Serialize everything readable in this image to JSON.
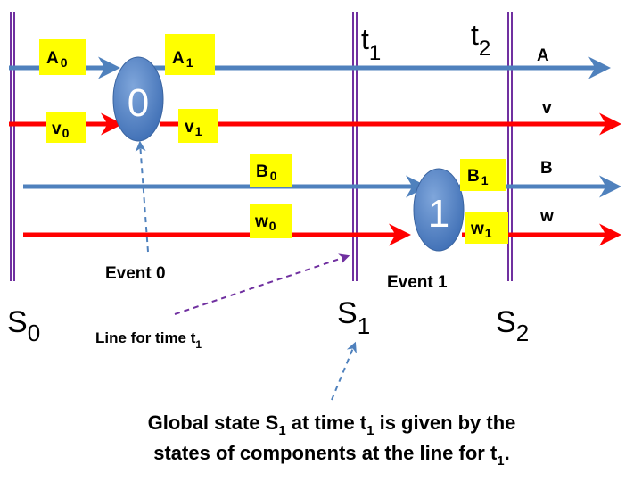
{
  "colors": {
    "blue_line": "#4f81bd",
    "red_line": "#ff0000",
    "purple_line": "#7030a0",
    "label_bg": "#ffff00",
    "event_fill": "#4f81bd",
    "arrow_dash": "#4f81bd"
  },
  "time_markers": {
    "t1": {
      "base": "t",
      "sub": "1"
    },
    "t2": {
      "base": "t",
      "sub": "2"
    }
  },
  "states": {
    "s0": {
      "base": "S",
      "sub": "0"
    },
    "s1": {
      "base": "S",
      "sub": "1"
    },
    "s2": {
      "base": "S",
      "sub": "2"
    }
  },
  "component_labels": {
    "A": "A",
    "v": "v",
    "B": "B",
    "w": "w"
  },
  "value_labels": {
    "a0": {
      "base": "A",
      "sub": "0"
    },
    "a1": {
      "base": "A",
      "sub": "1"
    },
    "v0": {
      "base": "v",
      "sub": "0"
    },
    "v1": {
      "base": "v",
      "sub": "1"
    },
    "b0": {
      "base": "B",
      "sub": "0"
    },
    "b1": {
      "base": "B",
      "sub": "1"
    },
    "w0": {
      "base": "w",
      "sub": "0"
    },
    "w1": {
      "base": "w",
      "sub": "1"
    }
  },
  "events": {
    "e0": {
      "number": "0",
      "label": "Event 0"
    },
    "e1": {
      "number": "1",
      "label": "Event 1"
    }
  },
  "line_for_time": {
    "text": "Line for time t",
    "sub": "1"
  },
  "caption": {
    "line1_a": "Global state S",
    "line1_sub1": "1",
    "line1_b": " at time t",
    "line1_sub2": "1",
    "line1_c": " is given by the",
    "line2_a": "states of components at  the line for t",
    "line2_sub": "1",
    "line2_b": "."
  }
}
